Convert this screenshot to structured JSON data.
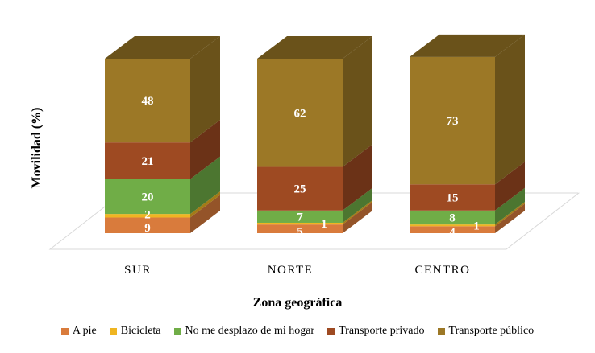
{
  "chart_data": {
    "type": "bar",
    "stacked": true,
    "three_d": true,
    "categories": [
      "SUR",
      "NORTE",
      "CENTRO"
    ],
    "series": [
      {
        "name": "A pie",
        "values": [
          9,
          5,
          4
        ],
        "color": "#D97B3C"
      },
      {
        "name": "Bicicleta",
        "values": [
          2,
          1,
          1
        ],
        "color": "#EFB521"
      },
      {
        "name": "No me desplazo de mi hogar",
        "values": [
          20,
          7,
          8
        ],
        "color": "#70AD47"
      },
      {
        "name": "Transporte privado",
        "values": [
          21,
          25,
          15
        ],
        "color": "#9E4A22"
      },
      {
        "name": "Transporte público",
        "values": [
          48,
          62,
          73
        ],
        "color": "#9C7826"
      }
    ],
    "xlabel": "Zona geográfica",
    "ylabel": "Movilidad (%)",
    "ylim": [
      0,
      100
    ],
    "legend": "bottom",
    "grid": false
  }
}
